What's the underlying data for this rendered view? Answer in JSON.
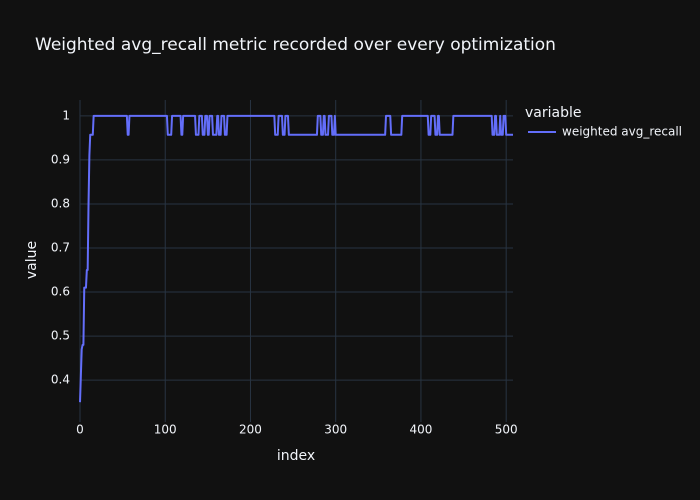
{
  "chart_data": {
    "type": "line",
    "title": "Weighted avg_recall metric recorded over every optimization",
    "x_label": "index",
    "y_label": "value",
    "legend_title": "variable",
    "legend_position": "right",
    "grid": true,
    "xlim": [
      0,
      508
    ],
    "ylim": [
      0.305,
      1.036
    ],
    "xticks": [
      0,
      100,
      200,
      300,
      400,
      500
    ],
    "yticks": [
      0.4,
      0.5,
      0.6,
      0.7,
      0.8,
      0.9,
      1
    ],
    "x": [
      0,
      1,
      2,
      3,
      4,
      5,
      6,
      7,
      8,
      9,
      10,
      11,
      12,
      15,
      16,
      55,
      56,
      57,
      58,
      102,
      103,
      107,
      108,
      118,
      119,
      120,
      121,
      135,
      136,
      139,
      140,
      143,
      144,
      146,
      147,
      149,
      150,
      151,
      152,
      155,
      156,
      160,
      161,
      162,
      163,
      165,
      166,
      169,
      170,
      172,
      173,
      228,
      229,
      232,
      233,
      237,
      238,
      240,
      241,
      244,
      245,
      278,
      279,
      282,
      283,
      285,
      286,
      287,
      288,
      291,
      292,
      295,
      296,
      298,
      299,
      300,
      358,
      359,
      364,
      365,
      377,
      378,
      408,
      409,
      411,
      412,
      416,
      417,
      419,
      420,
      421,
      422,
      437,
      438,
      483,
      484,
      486,
      487,
      488,
      489,
      492,
      493,
      494,
      496,
      497,
      499,
      500,
      508
    ],
    "series": [
      {
        "name": "weighted avg_recall",
        "color": "#636efa",
        "values": [
          0.35,
          0.41,
          0.47,
          0.48,
          0.48,
          0.61,
          0.61,
          0.61,
          0.65,
          0.65,
          0.8,
          0.91,
          0.957,
          0.957,
          1,
          1,
          0.957,
          0.957,
          1,
          1,
          0.957,
          0.957,
          1,
          1,
          0.957,
          0.957,
          1,
          1,
          0.957,
          0.957,
          1,
          1,
          0.957,
          0.957,
          1,
          1,
          0.957,
          0.957,
          1,
          1,
          0.957,
          0.957,
          1,
          1,
          0.957,
          0.957,
          1,
          1,
          0.957,
          0.957,
          1,
          1,
          0.957,
          0.957,
          1,
          1,
          0.957,
          0.957,
          1,
          1,
          0.957,
          0.957,
          1,
          1,
          0.957,
          0.957,
          1,
          1,
          0.957,
          0.957,
          1,
          1,
          0.957,
          0.957,
          1,
          0.957,
          0.957,
          1,
          1,
          0.957,
          0.957,
          1,
          1,
          0.957,
          0.957,
          1,
          1,
          0.957,
          0.957,
          1,
          1,
          0.957,
          0.957,
          1,
          1,
          0.957,
          0.957,
          1,
          1,
          0.957,
          0.957,
          1,
          0.957,
          0.957,
          1,
          1,
          0.957,
          0.957
        ]
      }
    ]
  }
}
